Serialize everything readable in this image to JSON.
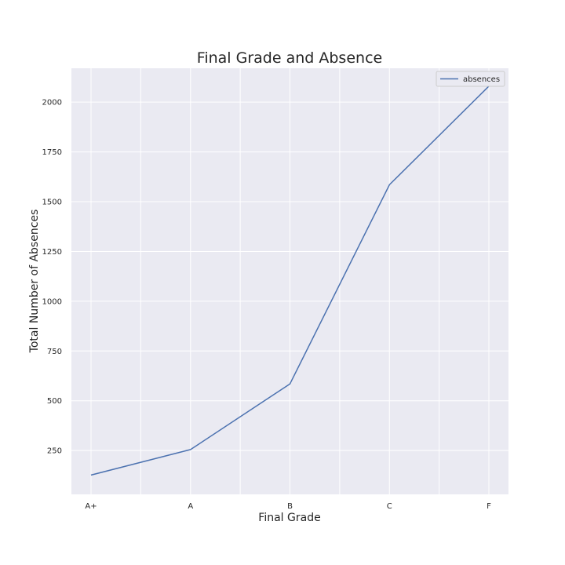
{
  "chart_data": {
    "type": "line",
    "title": "Final Grade and Absence",
    "xlabel": "Final Grade",
    "ylabel": "Total Number of Absences",
    "categories": [
      "A+",
      "A",
      "B",
      "C",
      "F"
    ],
    "series": [
      {
        "name": "absences",
        "values": [
          127,
          255,
          585,
          1585,
          2080
        ],
        "color": "#4c72b0"
      }
    ],
    "ylim": [
      30,
      2170
    ],
    "yticks": [
      250,
      500,
      750,
      1000,
      1250,
      1500,
      1750,
      2000
    ],
    "ytick_labels": [
      "250",
      "500",
      "750",
      "1000",
      "1250",
      "1500",
      "1750",
      "2000"
    ],
    "grid": true,
    "legend_position": "top-right",
    "colors": {
      "plot_background": "#eaeaf2",
      "grid": "#ffffff",
      "line": "#4c72b0"
    }
  }
}
